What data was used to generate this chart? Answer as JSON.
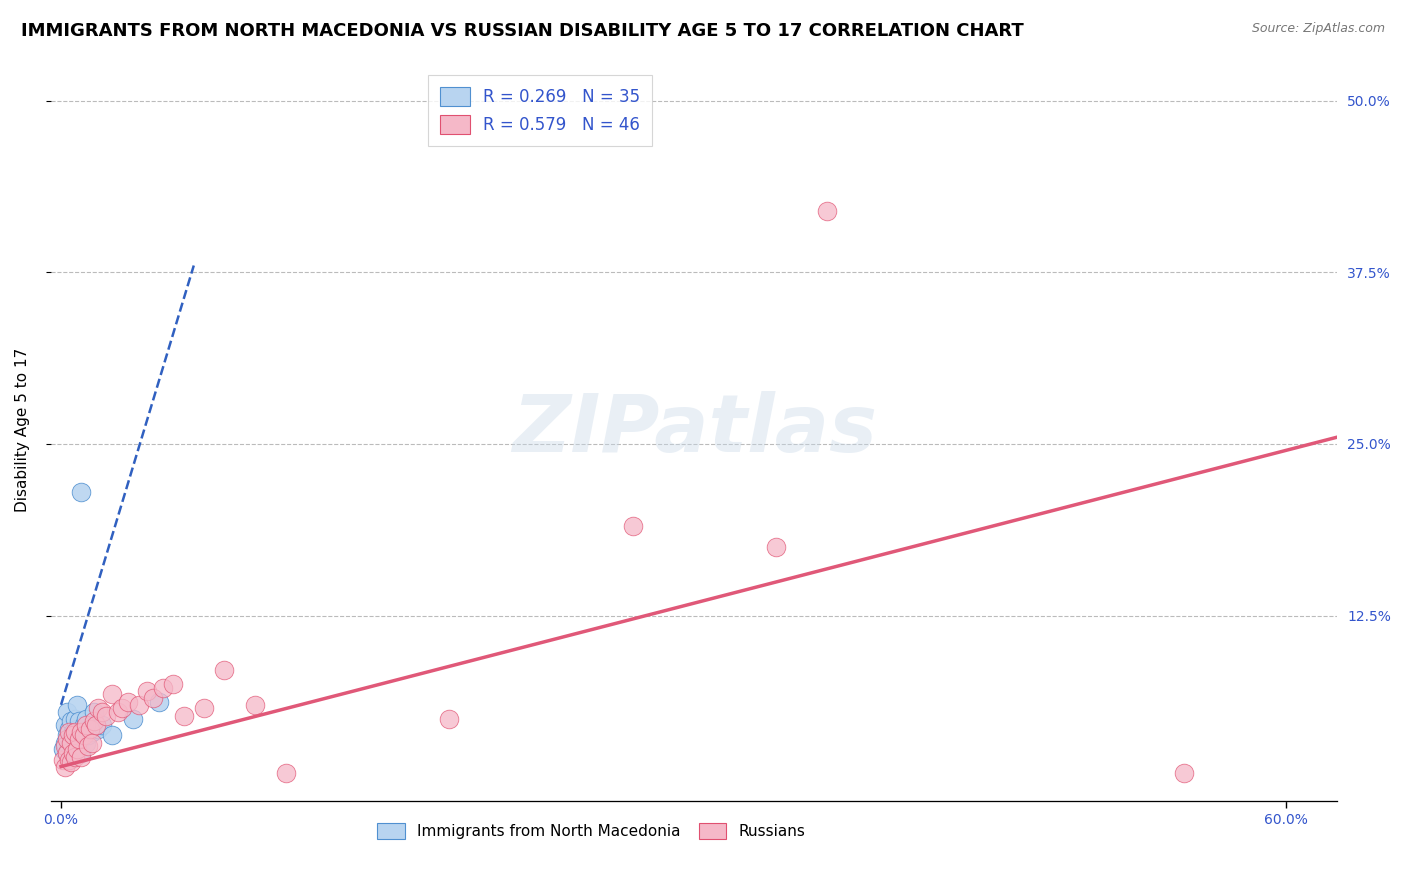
{
  "title": "IMMIGRANTS FROM NORTH MACEDONIA VS RUSSIAN DISABILITY AGE 5 TO 17 CORRELATION CHART",
  "source_text": "Source: ZipAtlas.com",
  "ylabel_text": "Disability Age 5 to 17",
  "xlim": [
    -0.005,
    0.625
  ],
  "ylim": [
    -0.01,
    0.53
  ],
  "x_tick_positions": [
    0.0,
    0.6
  ],
  "x_tick_labels": [
    "0.0%",
    "60.0%"
  ],
  "y_tick_positions": [
    0.125,
    0.25,
    0.375,
    0.5
  ],
  "y_tick_labels": [
    "12.5%",
    "25.0%",
    "37.5%",
    "50.0%"
  ],
  "legend1_label": "R = 0.269   N = 35",
  "legend2_label": "R = 0.579   N = 46",
  "legend_color1": "#b8d4f0",
  "legend_color2": "#f5b8c8",
  "blue_edge_color": "#5090d0",
  "pink_edge_color": "#e05070",
  "blue_line_color": "#3060c0",
  "pink_line_color": "#e05878",
  "tick_label_color": "#3355cc",
  "watermark": "ZIPatlas",
  "blue_scatter_x": [
    0.001,
    0.002,
    0.002,
    0.003,
    0.003,
    0.003,
    0.004,
    0.004,
    0.005,
    0.005,
    0.005,
    0.006,
    0.006,
    0.007,
    0.007,
    0.007,
    0.008,
    0.008,
    0.008,
    0.009,
    0.009,
    0.01,
    0.01,
    0.011,
    0.012,
    0.012,
    0.013,
    0.015,
    0.016,
    0.018,
    0.02,
    0.025,
    0.035,
    0.048,
    0.01
  ],
  "blue_scatter_y": [
    0.028,
    0.032,
    0.045,
    0.025,
    0.038,
    0.055,
    0.03,
    0.042,
    0.025,
    0.035,
    0.048,
    0.028,
    0.04,
    0.025,
    0.035,
    0.05,
    0.03,
    0.042,
    0.06,
    0.032,
    0.048,
    0.025,
    0.038,
    0.045,
    0.032,
    0.05,
    0.038,
    0.04,
    0.055,
    0.042,
    0.045,
    0.038,
    0.05,
    0.062,
    0.215
  ],
  "pink_scatter_x": [
    0.001,
    0.002,
    0.002,
    0.003,
    0.003,
    0.004,
    0.004,
    0.005,
    0.005,
    0.006,
    0.006,
    0.007,
    0.007,
    0.008,
    0.009,
    0.01,
    0.01,
    0.011,
    0.012,
    0.013,
    0.014,
    0.015,
    0.016,
    0.017,
    0.018,
    0.02,
    0.022,
    0.025,
    0.028,
    0.03,
    0.033,
    0.038,
    0.042,
    0.045,
    0.05,
    0.055,
    0.06,
    0.07,
    0.08,
    0.095,
    0.11,
    0.19,
    0.28,
    0.35,
    0.375,
    0.55
  ],
  "pink_scatter_y": [
    0.02,
    0.015,
    0.03,
    0.025,
    0.035,
    0.02,
    0.04,
    0.018,
    0.032,
    0.025,
    0.038,
    0.022,
    0.04,
    0.028,
    0.035,
    0.022,
    0.04,
    0.038,
    0.045,
    0.03,
    0.042,
    0.032,
    0.048,
    0.045,
    0.058,
    0.055,
    0.052,
    0.068,
    0.055,
    0.058,
    0.062,
    0.06,
    0.07,
    0.065,
    0.072,
    0.075,
    0.052,
    0.058,
    0.085,
    0.06,
    0.01,
    0.05,
    0.19,
    0.175,
    0.42,
    0.01
  ],
  "blue_line_x": [
    0.0,
    0.065
  ],
  "blue_line_y": [
    0.06,
    0.38
  ],
  "pink_line_x": [
    0.0,
    0.625
  ],
  "pink_line_y": [
    0.015,
    0.255
  ],
  "title_fontsize": 13,
  "tick_fontsize": 10,
  "axis_label_fontsize": 11
}
